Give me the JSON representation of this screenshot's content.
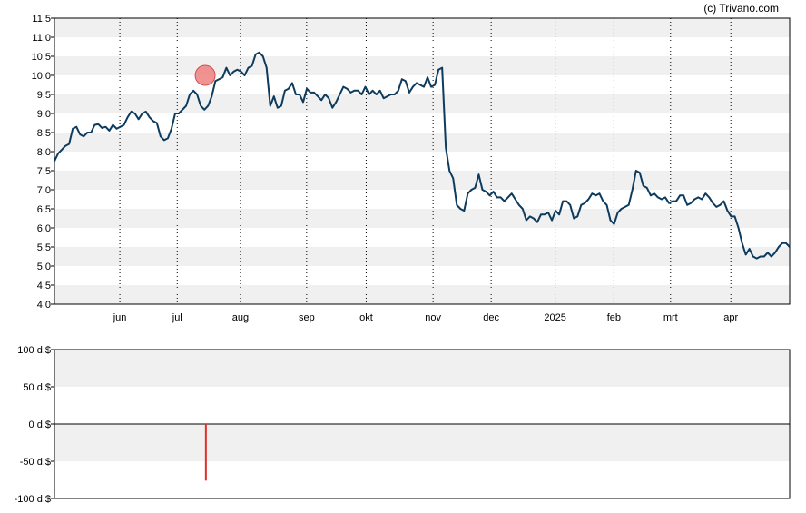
{
  "credit": "(c) Trivano.com",
  "chart_data": [
    {
      "type": "line",
      "title": "",
      "xlabel": "",
      "ylabel": "",
      "ylim": [
        4.0,
        11.5
      ],
      "y_ticks": [
        "4,0",
        "4,5",
        "5,0",
        "5,5",
        "6,0",
        "6,5",
        "7,0",
        "7,5",
        "8,0",
        "8,5",
        "9,0",
        "9,5",
        "10,0",
        "10,5",
        "11,0",
        "11,5"
      ],
      "y_tick_values": [
        4.0,
        4.5,
        5.0,
        5.5,
        6.0,
        6.5,
        7.0,
        7.5,
        8.0,
        8.5,
        9.0,
        9.5,
        10.0,
        10.5,
        11.0,
        11.5
      ],
      "x_ticks": [
        "jun",
        "jul",
        "aug",
        "sep",
        "okt",
        "nov",
        "dec",
        "2025",
        "feb",
        "mrt",
        "apr"
      ],
      "x_tick_positions": [
        0.089,
        0.167,
        0.253,
        0.343,
        0.424,
        0.515,
        0.594,
        0.681,
        0.761,
        0.838,
        0.92
      ],
      "grid": "alternating horizontal bands, dotted vertical lines at month ticks",
      "line_color": "#0d3b5e",
      "marker_color": "#f08080",
      "marker_x": 0.205,
      "marker_value": 10.0,
      "series": [
        {
          "values": [
            7.75,
            7.95,
            8.05,
            8.15,
            8.2,
            8.6,
            8.65,
            8.45,
            8.4,
            8.5,
            8.5,
            8.7,
            8.72,
            8.62,
            8.65,
            8.55,
            8.7,
            8.6,
            8.65,
            8.7,
            8.9,
            9.05,
            9.0,
            8.85,
            9.0,
            9.05,
            8.9,
            8.8,
            8.75,
            8.4,
            8.3,
            8.35,
            8.6,
            9.0,
            9.0,
            9.1,
            9.2,
            9.5,
            9.6,
            9.5,
            9.2,
            9.1,
            9.2,
            9.45,
            9.85,
            9.9,
            9.95,
            10.2,
            10.0,
            10.1,
            10.15,
            10.1,
            10.0,
            10.2,
            10.25,
            10.55,
            10.6,
            10.5,
            10.2,
            9.2,
            9.45,
            9.15,
            9.2,
            9.6,
            9.65,
            9.8,
            9.5,
            9.5,
            9.3,
            9.65,
            9.55,
            9.55,
            9.45,
            9.35,
            9.5,
            9.4,
            9.15,
            9.3,
            9.5,
            9.7,
            9.65,
            9.55,
            9.6,
            9.6,
            9.5,
            9.7,
            9.5,
            9.6,
            9.5,
            9.6,
            9.4,
            9.45,
            9.5,
            9.5,
            9.6,
            9.9,
            9.85,
            9.55,
            9.7,
            9.8,
            9.75,
            9.7,
            9.95,
            9.7,
            9.75,
            10.15,
            10.2,
            8.1,
            7.5,
            7.3,
            6.6,
            6.5,
            6.45,
            6.9,
            7.0,
            7.05,
            7.4,
            7.0,
            6.95,
            6.85,
            6.95,
            6.8,
            6.8,
            6.7,
            6.8,
            6.9,
            6.75,
            6.6,
            6.5,
            6.2,
            6.3,
            6.25,
            6.15,
            6.35,
            6.35,
            6.4,
            6.2,
            6.45,
            6.35,
            6.7,
            6.7,
            6.6,
            6.25,
            6.3,
            6.6,
            6.65,
            6.75,
            6.9,
            6.85,
            6.9,
            6.7,
            6.6,
            6.2,
            6.1,
            6.4,
            6.5,
            6.55,
            6.6,
            7.0,
            7.5,
            7.45,
            7.1,
            7.05,
            6.85,
            6.9,
            6.8,
            6.75,
            6.8,
            6.65,
            6.7,
            6.7,
            6.85,
            6.85,
            6.6,
            6.65,
            6.75,
            6.8,
            6.75,
            6.9,
            6.8,
            6.65,
            6.55,
            6.6,
            6.7,
            6.45,
            6.3,
            6.3,
            6.0,
            5.6,
            5.3,
            5.45,
            5.25,
            5.2,
            5.25,
            5.25,
            5.35,
            5.25,
            5.35,
            5.5,
            5.6,
            5.6,
            5.5
          ]
        }
      ]
    },
    {
      "type": "bar",
      "title": "",
      "xlabel": "",
      "ylabel": "",
      "ylim": [
        -100,
        100
      ],
      "y_ticks": [
        "100 d.$",
        "50 d.$",
        "0 d.$",
        "-50 d.$",
        "-100 d.$"
      ],
      "y_tick_values": [
        100,
        50,
        0,
        -50,
        -100
      ],
      "grid": "alternating horizontal bands",
      "bars": [
        {
          "x": 0.206,
          "value": -76,
          "color": "#e0302a"
        }
      ]
    }
  ]
}
